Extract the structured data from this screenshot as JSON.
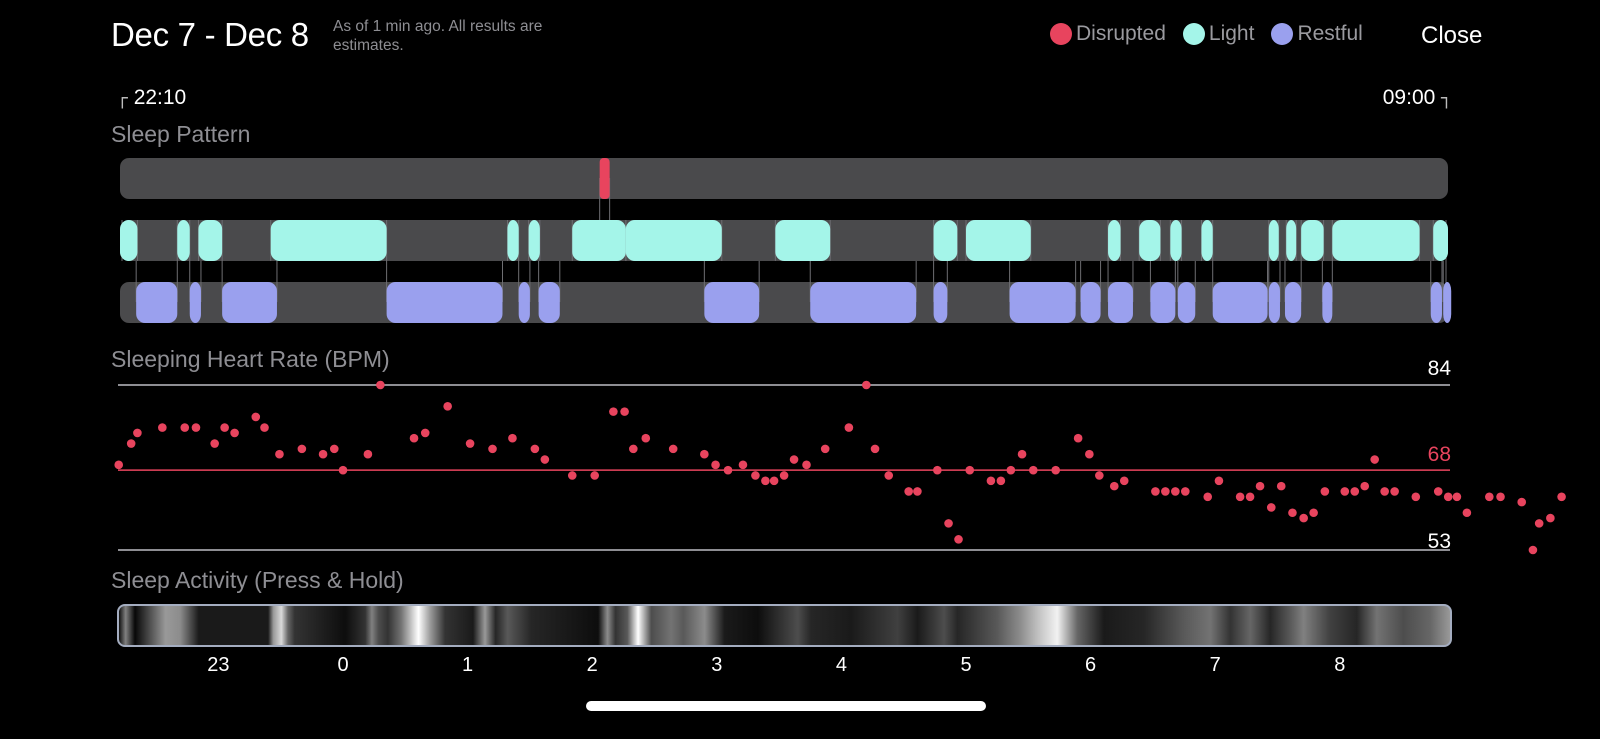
{
  "header": {
    "title": "Dec 7 - Dec 8",
    "subtitle": "As of 1 min ago. All results are estimates.",
    "close_label": "Close"
  },
  "legend": [
    {
      "label": "Disrupted",
      "color": "#e8445e"
    },
    {
      "label": "Light",
      "color": "#a4f5e9"
    },
    {
      "label": "Restful",
      "color": "#9aa0ee"
    }
  ],
  "time_range": {
    "start": "22:10",
    "end": "09:00"
  },
  "sleep_pattern": {
    "title": "Sleep Pattern",
    "track_color": "#4a4a4c",
    "start_hour": 22.17,
    "end_hour": 33.0,
    "disrupted": [
      [
        26.06,
        26.14
      ]
    ],
    "light": [
      [
        22.17,
        22.35
      ],
      [
        22.67,
        22.77
      ],
      [
        22.84,
        23.03
      ],
      [
        23.42,
        24.35
      ],
      [
        25.32,
        25.41
      ],
      [
        25.49,
        25.58
      ],
      [
        25.84,
        26.27
      ],
      [
        26.27,
        27.04
      ],
      [
        27.47,
        27.91
      ],
      [
        28.74,
        28.93
      ],
      [
        29.0,
        29.52
      ],
      [
        30.14,
        30.24
      ],
      [
        30.39,
        30.56
      ],
      [
        30.64,
        30.73
      ],
      [
        30.89,
        30.98
      ],
      [
        31.43,
        31.51
      ],
      [
        31.57,
        31.65
      ],
      [
        31.69,
        31.87
      ],
      [
        31.94,
        32.64
      ],
      [
        32.75,
        33.0
      ]
    ],
    "restful": [
      [
        22.34,
        22.67
      ],
      [
        22.77,
        22.86
      ],
      [
        23.03,
        23.47
      ],
      [
        24.35,
        25.28
      ],
      [
        25.41,
        25.5
      ],
      [
        25.57,
        25.74
      ],
      [
        26.9,
        27.34
      ],
      [
        27.75,
        28.6
      ],
      [
        28.74,
        28.85
      ],
      [
        29.35,
        29.88
      ],
      [
        29.92,
        30.08
      ],
      [
        30.14,
        30.34
      ],
      [
        30.48,
        30.68
      ],
      [
        30.7,
        30.84
      ],
      [
        30.98,
        31.42
      ],
      [
        31.43,
        31.52
      ],
      [
        31.56,
        31.69
      ],
      [
        31.86,
        31.94
      ],
      [
        32.73,
        32.82
      ],
      [
        32.83,
        33.0
      ]
    ]
  },
  "heart_rate": {
    "title": "Sleeping Heart Rate (BPM)",
    "max": 84,
    "avg": 68,
    "min": 53,
    "color": "#e8445e",
    "points": [
      [
        22.2,
        69
      ],
      [
        22.3,
        73
      ],
      [
        22.35,
        75
      ],
      [
        22.55,
        76
      ],
      [
        22.73,
        76
      ],
      [
        22.82,
        76
      ],
      [
        22.97,
        73
      ],
      [
        23.05,
        76
      ],
      [
        23.13,
        75
      ],
      [
        23.3,
        78
      ],
      [
        23.37,
        76
      ],
      [
        23.49,
        71
      ],
      [
        23.67,
        72
      ],
      [
        23.84,
        71
      ],
      [
        23.93,
        72
      ],
      [
        24.0,
        68
      ],
      [
        24.2,
        71
      ],
      [
        24.3,
        84
      ],
      [
        24.57,
        74
      ],
      [
        24.66,
        75
      ],
      [
        24.84,
        80
      ],
      [
        25.02,
        73
      ],
      [
        25.2,
        72
      ],
      [
        25.36,
        74
      ],
      [
        25.54,
        72
      ],
      [
        25.62,
        70
      ],
      [
        25.84,
        67
      ],
      [
        26.02,
        67
      ],
      [
        26.17,
        79
      ],
      [
        26.26,
        79
      ],
      [
        26.33,
        72
      ],
      [
        26.43,
        74
      ],
      [
        26.65,
        72
      ],
      [
        26.9,
        71
      ],
      [
        26.99,
        69
      ],
      [
        27.09,
        68
      ],
      [
        27.21,
        69
      ],
      [
        27.31,
        67
      ],
      [
        27.39,
        66
      ],
      [
        27.46,
        66
      ],
      [
        27.54,
        67
      ],
      [
        27.62,
        70
      ],
      [
        27.72,
        69
      ],
      [
        27.87,
        72
      ],
      [
        28.06,
        76
      ],
      [
        28.2,
        84
      ],
      [
        28.27,
        72
      ],
      [
        28.38,
        67
      ],
      [
        28.54,
        64
      ],
      [
        28.61,
        64
      ],
      [
        28.77,
        68
      ],
      [
        28.86,
        58
      ],
      [
        28.94,
        55
      ],
      [
        29.03,
        68
      ],
      [
        29.2,
        66
      ],
      [
        29.28,
        66
      ],
      [
        29.36,
        68
      ],
      [
        29.45,
        71
      ],
      [
        29.54,
        68
      ],
      [
        29.72,
        68
      ],
      [
        29.9,
        74
      ],
      [
        29.99,
        71
      ],
      [
        30.07,
        67
      ],
      [
        30.19,
        65
      ],
      [
        30.27,
        66
      ],
      [
        30.52,
        64
      ],
      [
        30.6,
        64
      ],
      [
        30.68,
        64
      ],
      [
        30.76,
        64
      ],
      [
        30.94,
        63
      ],
      [
        31.03,
        66
      ],
      [
        31.2,
        63
      ],
      [
        31.28,
        63
      ],
      [
        31.36,
        65
      ],
      [
        31.45,
        61
      ],
      [
        31.53,
        65
      ],
      [
        31.62,
        60
      ],
      [
        31.71,
        59
      ],
      [
        31.79,
        60
      ],
      [
        31.88,
        64
      ],
      [
        32.04,
        64
      ],
      [
        32.12,
        64
      ],
      [
        32.2,
        65
      ],
      [
        32.28,
        70
      ],
      [
        32.36,
        64
      ],
      [
        32.44,
        64
      ],
      [
        32.61,
        63
      ],
      [
        32.79,
        64
      ],
      [
        32.87,
        63
      ],
      [
        32.94,
        63
      ],
      [
        33.02,
        60
      ],
      [
        33.2,
        63
      ],
      [
        33.29,
        63
      ],
      [
        33.46,
        62
      ],
      [
        33.55,
        53
      ],
      [
        33.6,
        58
      ],
      [
        33.69,
        59
      ],
      [
        33.78,
        63
      ]
    ]
  },
  "sleep_activity": {
    "title": "Sleep Activity (Press & Hold)"
  },
  "axis": {
    "ticks": [
      {
        "label": "23",
        "hour": 23
      },
      {
        "label": "0",
        "hour": 24
      },
      {
        "label": "1",
        "hour": 25
      },
      {
        "label": "2",
        "hour": 26
      },
      {
        "label": "3",
        "hour": 27
      },
      {
        "label": "4",
        "hour": 28
      },
      {
        "label": "5",
        "hour": 29
      },
      {
        "label": "6",
        "hour": 30
      },
      {
        "label": "7",
        "hour": 31
      },
      {
        "label": "8",
        "hour": 32
      }
    ]
  }
}
